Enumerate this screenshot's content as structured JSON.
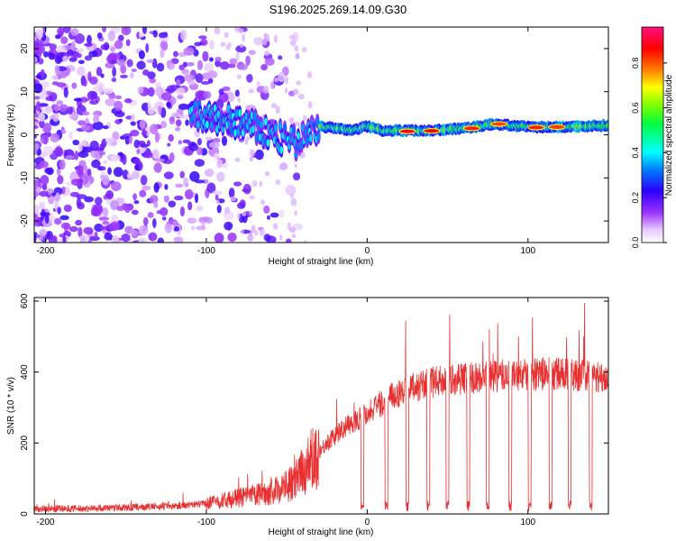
{
  "title": "S196.2025.269.14.09.G30",
  "colors": {
    "snr_line": "#e83030",
    "axis": "#000000"
  },
  "chart_data": [
    {
      "type": "heatmap",
      "xlabel": "Height of straight line (km)",
      "ylabel": "Frequency (Hz)",
      "xlim": [
        -207,
        150
      ],
      "ylim": [
        -25,
        25
      ],
      "xticks": [
        -200,
        -100,
        0,
        100
      ],
      "yticks": [
        -20,
        -10,
        0,
        10,
        20
      ],
      "colorbar": {
        "label": "Normalized spectral amplitude",
        "range": [
          0,
          0.96
        ],
        "ticks": [
          0.0,
          0.2,
          0.4,
          0.6,
          0.8
        ]
      },
      "ridge": [
        {
          "x": -100,
          "y": 4
        },
        {
          "x": -80,
          "y": 3
        },
        {
          "x": -60,
          "y": 0
        },
        {
          "x": -45,
          "y": -2
        },
        {
          "x": -30,
          "y": 2
        },
        {
          "x": -10,
          "y": 1
        },
        {
          "x": 0,
          "y": 2
        },
        {
          "x": 10,
          "y": 1
        },
        {
          "x": 40,
          "y": 1
        },
        {
          "x": 60,
          "y": 1.5
        },
        {
          "x": 80,
          "y": 2.5
        },
        {
          "x": 100,
          "y": 1.8
        },
        {
          "x": 120,
          "y": 1.8
        },
        {
          "x": 150,
          "y": 2.2
        }
      ],
      "hotspots": [
        {
          "x": 25,
          "y": 0.8,
          "value": 0.92
        },
        {
          "x": 40,
          "y": 0.9,
          "value": 0.9
        },
        {
          "x": 65,
          "y": 1.5,
          "value": 0.88
        },
        {
          "x": 82,
          "y": 2.5,
          "value": 0.85
        },
        {
          "x": 105,
          "y": 1.7,
          "value": 0.88
        },
        {
          "x": 118,
          "y": 1.8,
          "value": 0.86
        }
      ]
    },
    {
      "type": "line",
      "xlabel": "Height of straight line (km)",
      "ylabel": "SNR (10 * v/v)",
      "xlim": [
        -207,
        150
      ],
      "ylim": [
        0,
        610
      ],
      "xticks": [
        -200,
        -100,
        0,
        100
      ],
      "yticks": [
        0,
        200,
        400,
        600
      ],
      "series": [
        {
          "name": "SNR",
          "x": [
            -207,
            -180,
            -150,
            -120,
            -100,
            -80,
            -60,
            -45,
            -35,
            -25,
            -15,
            -5,
            5,
            15,
            25,
            35,
            45,
            55,
            65,
            75,
            85,
            95,
            105,
            115,
            125,
            135,
            150
          ],
          "y": [
            15,
            15,
            18,
            22,
            30,
            45,
            60,
            90,
            150,
            200,
            240,
            270,
            300,
            330,
            350,
            365,
            375,
            380,
            385,
            385,
            390,
            390,
            395,
            395,
            395,
            390,
            385
          ]
        }
      ],
      "dropouts": [
        -3,
        12,
        25,
        38,
        50,
        63,
        75,
        89,
        101,
        114,
        126,
        139
      ]
    }
  ]
}
